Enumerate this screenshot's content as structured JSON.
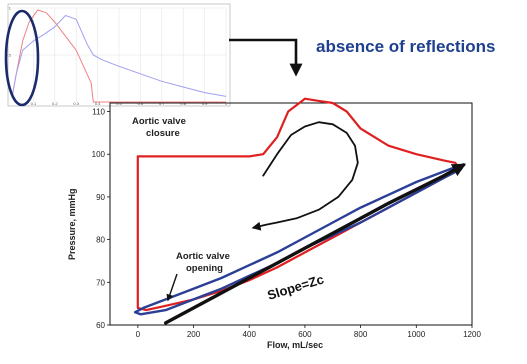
{
  "heading": {
    "text": "absence of reflections",
    "color": "#1F3F8F"
  },
  "colors": {
    "red": "#E02020",
    "blue": "#2A3F95",
    "black": "#111111",
    "inset_red": "#F08080",
    "inset_blue": "#A0A0F0",
    "circle": "#1B2A6B"
  },
  "annotations": {
    "closure_line1": "Aortic valve",
    "closure_line2": "closure",
    "opening_line1": "Aortic valve",
    "opening_line2": "opening",
    "slope": "Slope=Zc"
  },
  "chart_data": [
    {
      "type": "line",
      "title": "",
      "xlabel": "Flow, mL/sec",
      "ylabel": "Pressure, mmHg",
      "xlim": [
        -100,
        1200
      ],
      "ylim": [
        60,
        112
      ],
      "x_ticks": [
        "0",
        "200",
        "400",
        "600",
        "800",
        "1000",
        "1200"
      ],
      "y_ticks": [
        "60",
        "70",
        "80",
        "90",
        "100",
        "110"
      ],
      "grid": false,
      "series": [
        {
          "name": "",
          "color": "red",
          "x": [
            0,
            0,
            20,
            100,
            200,
            300,
            400,
            450,
            500,
            540,
            600,
            650,
            700,
            750,
            800,
            900,
            1000,
            1100,
            1140,
            1150,
            1100,
            1000,
            900,
            800,
            700,
            600,
            500,
            400,
            300,
            200,
            100,
            30,
            0
          ],
          "y": [
            64,
            99.5,
            99.5,
            99.5,
            99.5,
            99.5,
            99.5,
            100,
            104,
            110,
            113,
            112.5,
            112,
            110,
            106,
            102,
            100,
            98.5,
            98,
            97,
            94.5,
            91,
            87.5,
            84,
            80.5,
            77,
            73.5,
            70.5,
            68,
            66,
            64.5,
            63.5,
            64
          ]
        },
        {
          "name": "",
          "color": "blue",
          "x": [
            10,
            100,
            200,
            300,
            400,
            500,
            600,
            700,
            800,
            900,
            1000,
            1100,
            1160,
            1170,
            1120,
            1000,
            900,
            800,
            700,
            600,
            500,
            400,
            300,
            200,
            100,
            20,
            -10,
            10
          ],
          "y": [
            62.5,
            63.5,
            66,
            68.5,
            71.5,
            74.5,
            78,
            81,
            84,
            87.5,
            91,
            94.5,
            96.5,
            97.5,
            96.5,
            93.5,
            90.5,
            87.5,
            84,
            80.5,
            77,
            74,
            71,
            68.5,
            66,
            64,
            63,
            62.5
          ]
        },
        {
          "name": "",
          "color": "black",
          "x": [
            450,
            500,
            550,
            600,
            650,
            700,
            750,
            780,
            790,
            770,
            720,
            650,
            570,
            500,
            460,
            430,
            415
          ],
          "y": [
            95,
            100,
            104.5,
            106.5,
            107.5,
            107,
            105,
            102,
            98,
            94,
            90,
            87,
            85,
            84,
            83.5,
            83,
            82.8
          ]
        },
        {
          "name": "",
          "color": "black",
          "x": [
            100,
            300,
            500,
            700,
            900,
            1100,
            1170
          ],
          "y": [
            60.5,
            67.5,
            74.5,
            81.5,
            88.5,
            95,
            97.5
          ]
        }
      ]
    },
    {
      "type": "line",
      "title": "",
      "xlabel": "",
      "ylabel": "",
      "xlim": [
        0,
        1
      ],
      "ylim": [
        0,
        1
      ],
      "x_ticks": [
        "0.1",
        "0.2",
        "0.3",
        "0.4",
        "0.5",
        "0.6",
        "0.7",
        "0.8",
        "0.9",
        "1"
      ],
      "y_ticks": [
        "0.5",
        "1"
      ],
      "grid": true,
      "series": [
        {
          "name": "",
          "color": "inset_red",
          "x": [
            0,
            0.02,
            0.05,
            0.08,
            0.12,
            0.16,
            0.2,
            0.25,
            0.3,
            0.34,
            0.37,
            0.38,
            1
          ],
          "y": [
            0.05,
            0.3,
            0.65,
            0.85,
            0.98,
            0.95,
            0.85,
            0.7,
            0.55,
            0.35,
            0.2,
            0,
            0
          ]
        },
        {
          "name": "",
          "color": "inset_blue",
          "x": [
            0,
            0.02,
            0.05,
            0.1,
            0.15,
            0.2,
            0.25,
            0.3,
            0.35,
            0.38,
            0.42,
            0.5,
            0.6,
            0.7,
            0.8,
            0.9,
            1
          ],
          "y": [
            0.05,
            0.3,
            0.55,
            0.65,
            0.72,
            0.8,
            0.92,
            0.88,
            0.62,
            0.5,
            0.45,
            0.38,
            0.3,
            0.22,
            0.16,
            0.1,
            0.06
          ]
        }
      ]
    }
  ]
}
